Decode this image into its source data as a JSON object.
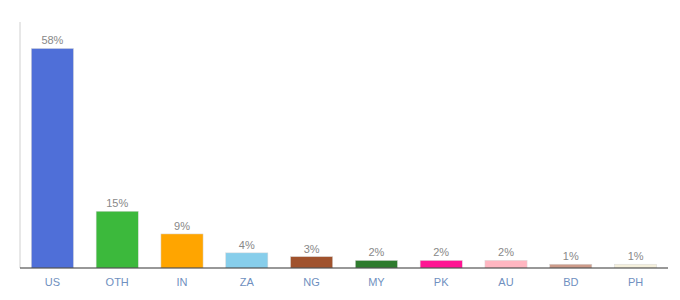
{
  "chart_data": {
    "type": "bar",
    "categories": [
      "US",
      "OTH",
      "IN",
      "ZA",
      "NG",
      "MY",
      "PK",
      "AU",
      "BD",
      "PH"
    ],
    "values": [
      58,
      15,
      9,
      4,
      3,
      2,
      2,
      2,
      1,
      1
    ],
    "value_labels": [
      "58%",
      "15%",
      "9%",
      "4%",
      "3%",
      "2%",
      "2%",
      "2%",
      "1%",
      "1%"
    ],
    "colors": [
      "#4F6FD8",
      "#3CB93C",
      "#FFA500",
      "#87CEEB",
      "#A0522D",
      "#2E7B2E",
      "#FF1493",
      "#FFB6C1",
      "#CD9B8A",
      "#F5F0DC"
    ],
    "ylim": [
      0,
      65
    ],
    "data_labels": true,
    "tick_labels": "x",
    "grid": false
  }
}
